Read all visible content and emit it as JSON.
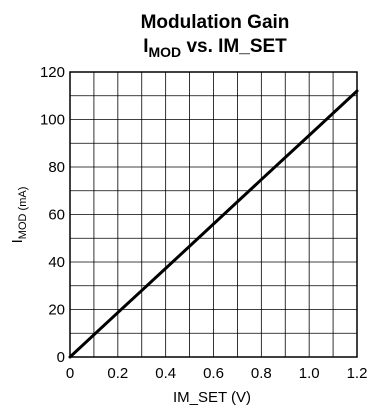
{
  "chart_data": {
    "type": "line",
    "title": "Modulation Gain",
    "subtitle": {
      "main": "I",
      "sub": "MOD",
      "rest": " vs. IM_SET"
    },
    "xlabel": "IM_SET (V)",
    "ylabel": {
      "main": "I",
      "sub": "MOD",
      "unit": " (mA)"
    },
    "xlim": [
      0,
      1.2
    ],
    "ylim": [
      0,
      120
    ],
    "x_ticks": [
      "0",
      "0.2",
      "0.4",
      "0.6",
      "0.8",
      "1.0",
      "1.2"
    ],
    "y_ticks": [
      "0",
      "20",
      "40",
      "60",
      "80",
      "100",
      "120"
    ],
    "x_tick_values": [
      0,
      0.2,
      0.4,
      0.6,
      0.8,
      1.0,
      1.2
    ],
    "y_tick_values": [
      0,
      20,
      40,
      60,
      80,
      100,
      120
    ],
    "grid": true,
    "series": [
      {
        "x": [
          0,
          0.2,
          0.4,
          0.6,
          0.8,
          1.0,
          1.2
        ],
        "y": [
          0,
          18.7,
          37.3,
          56,
          74.7,
          93.3,
          112
        ]
      }
    ]
  }
}
